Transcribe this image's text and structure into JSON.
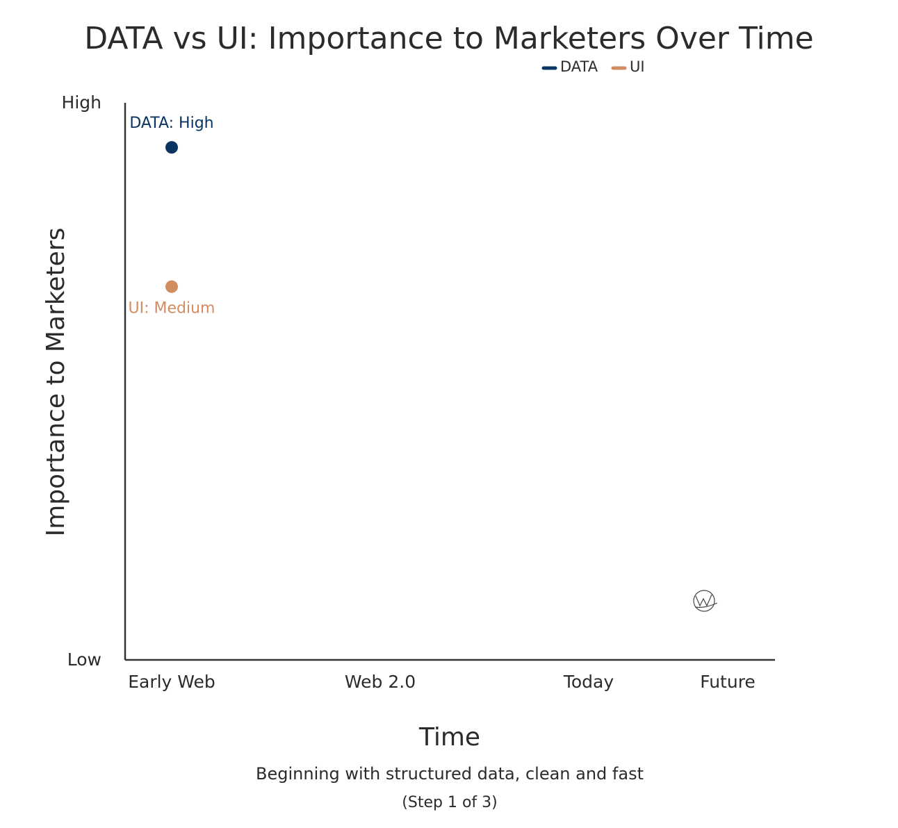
{
  "chart_data": {
    "type": "scatter",
    "title": "DATA vs UI: Importance to Marketers Over Time",
    "xlabel": "Time",
    "ylabel": "Importance to Marketers",
    "categories": [
      "Early Web",
      "Web 2.0",
      "Today",
      "Future"
    ],
    "y_ticks": [
      "Low",
      "High"
    ],
    "ylim": [
      0,
      1
    ],
    "grid": false,
    "legend_position": "top-right",
    "series": [
      {
        "name": "DATA",
        "color": "#0b3561",
        "points": [
          {
            "x": "Early Web",
            "y": 0.92,
            "label": "DATA: High"
          }
        ]
      },
      {
        "name": "UI",
        "color": "#d18c62",
        "points": [
          {
            "x": "Early Web",
            "y": 0.67,
            "label": "UI: Medium"
          }
        ]
      }
    ],
    "caption": "Beginning with structured data, clean and fast",
    "step": "(Step 1 of 3)"
  }
}
